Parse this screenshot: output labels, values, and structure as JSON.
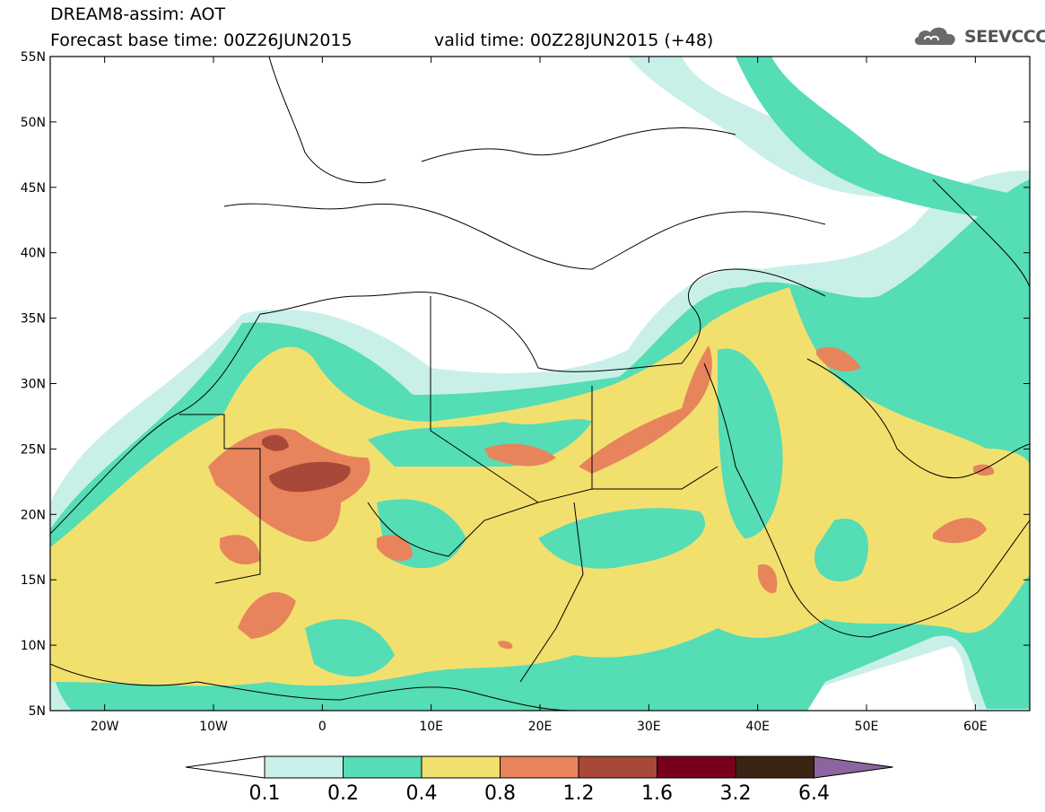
{
  "header": {
    "model_title": "DREAM8-assim: AOT",
    "base_time": "Forecast base time: 00Z26JUN2015",
    "valid_time": "valid time: 00Z28JUN2015 (+48)",
    "logo_text": "SEEVCCC",
    "logo_icon": "cloud-icon"
  },
  "map": {
    "lat_labels": [
      "55N",
      "50N",
      "45N",
      "40N",
      "35N",
      "30N",
      "25N",
      "20N",
      "15N",
      "10N",
      "5N"
    ],
    "lat_values": [
      55,
      50,
      45,
      40,
      35,
      30,
      25,
      20,
      15,
      10,
      5
    ],
    "lon_labels": [
      "20W",
      "10W",
      "0",
      "10E",
      "20E",
      "30E",
      "40E",
      "50E",
      "60E"
    ],
    "lon_values": [
      -20,
      -10,
      0,
      10,
      20,
      30,
      40,
      50,
      60
    ],
    "extent": {
      "lon_min": -25,
      "lon_max": 65,
      "lat_min": 5,
      "lat_max": 55
    }
  },
  "colorbar": {
    "thresholds": [
      "0.1",
      "0.2",
      "0.4",
      "0.8",
      "1.2",
      "1.6",
      "3.2",
      "6.4"
    ],
    "colors": [
      "#c8f0e8",
      "#55ddb5",
      "#f2e06e",
      "#e8845c",
      "#a84838",
      "#78001e",
      "#3c2414",
      "#8c64a0"
    ],
    "under_color": "#ffffff",
    "over_color": "#8c64a0"
  },
  "aot_levels": {
    "c1": "#c8f0e8",
    "c2": "#55ddb5",
    "c3": "#f2e06e",
    "c4": "#e8845c",
    "c5": "#a84838"
  }
}
